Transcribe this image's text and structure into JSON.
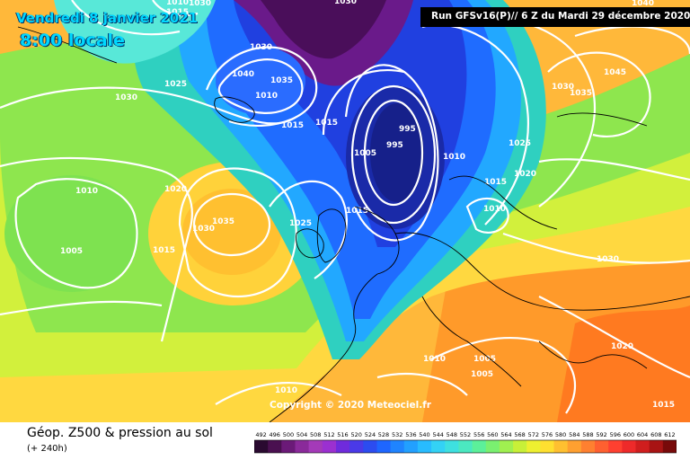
{
  "header": {
    "date": "Vendredi 8 janvier 2021",
    "time": "8:00 locale",
    "run": "Run GFSv16(P)// 6 Z du Mardi 29 décembre 2020"
  },
  "copyright": "Copyright © 2020 Meteociel.fr",
  "legend": {
    "title": "Géop. Z500 & pression au sol",
    "subtitle": "(+ 240h)",
    "scale_values": [
      "492",
      "496",
      "500",
      "504",
      "508",
      "512",
      "516",
      "520",
      "524",
      "528",
      "532",
      "536",
      "540",
      "544",
      "548",
      "552",
      "556",
      "560",
      "564",
      "568",
      "572",
      "576",
      "580",
      "584",
      "588",
      "592",
      "596",
      "600",
      "604",
      "608",
      "612"
    ],
    "scale_colors": [
      "#2a0a30",
      "#4a1050",
      "#6b1a78",
      "#8a2a9a",
      "#a43ab8",
      "#9b30d0",
      "#6f2bdc",
      "#4a3ae8",
      "#2c4cf0",
      "#1e66ff",
      "#1f84ff",
      "#22a0ff",
      "#28bcff",
      "#33d2f5",
      "#3ee0e0",
      "#4be8c0",
      "#5cf09a",
      "#7af070",
      "#a0f050",
      "#c8f038",
      "#eef030",
      "#ffe030",
      "#ffc030",
      "#ffa030",
      "#ff8030",
      "#ff6030",
      "#ff4030",
      "#ee2a2a",
      "#d01e1e",
      "#a81414",
      "#780a0a"
    ]
  },
  "isobars": [
    "1010",
    "1015",
    "1030",
    "1040",
    "1030",
    "1025",
    "1030",
    "1040",
    "1035",
    "1020",
    "1010",
    "1030",
    "1045",
    "1040",
    "1030",
    "1035",
    "1015",
    "1015",
    "995",
    "995",
    "1005",
    "1010",
    "1015",
    "1020",
    "1025",
    "1010",
    "1020",
    "1035",
    "1030",
    "1025",
    "1010",
    "1005",
    "1015",
    "1015",
    "1010",
    "1030",
    "1020",
    "1010",
    "1005",
    "1005",
    "1010",
    "1015"
  ],
  "map_palette": {
    "background": "#f2a040",
    "ocean_yellow": "#ffd84a",
    "green": "#a8e64a",
    "teal": "#2fd0c0",
    "blue": "#1a6cff",
    "navy": "#1a2aa8",
    "purple": "#6a1a8a",
    "orange": "#ff9a2a"
  }
}
